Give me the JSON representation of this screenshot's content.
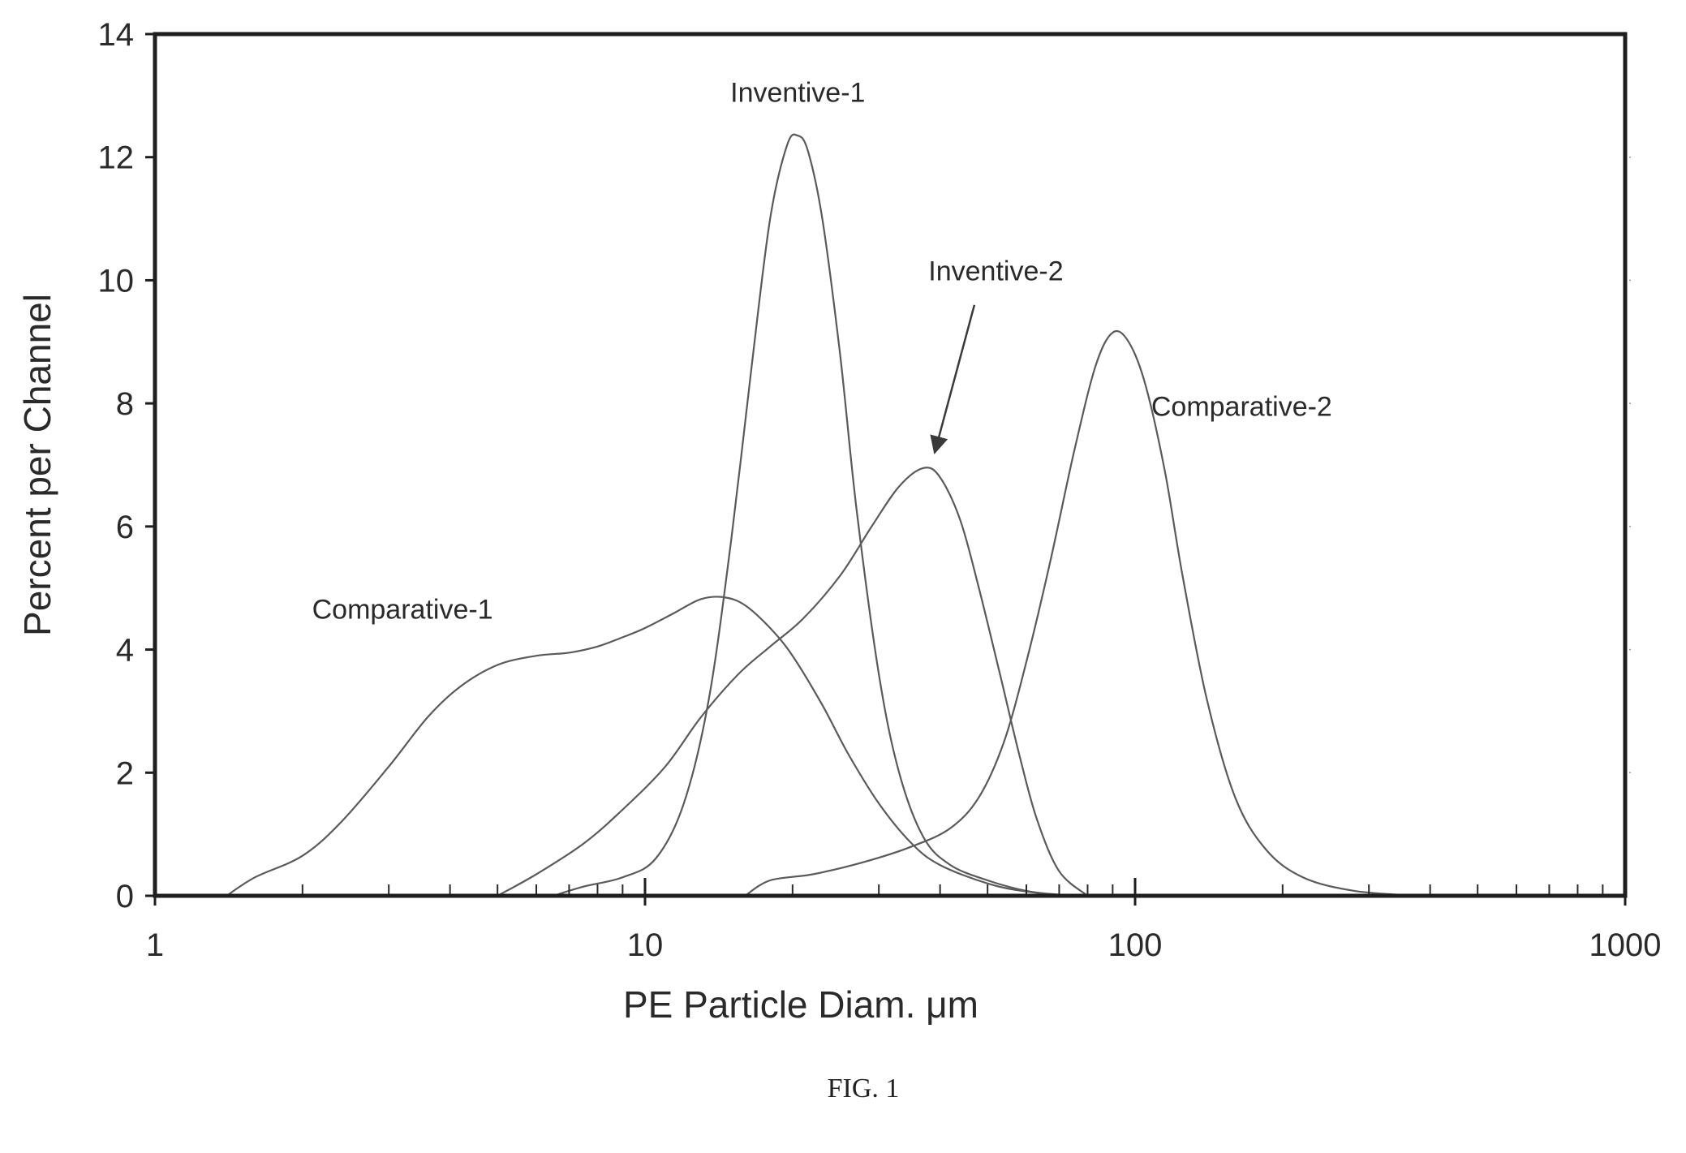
{
  "figure": {
    "caption": "FIG. 1"
  },
  "chart_data": {
    "type": "line",
    "title": "",
    "xlabel": "PE Particle Diam. μm",
    "ylabel": "Percent per Channel",
    "xscale": "log",
    "xlim": [
      1,
      1000
    ],
    "ylim": [
      0,
      14
    ],
    "xticks": [
      1,
      10,
      100,
      1000
    ],
    "xtick_labels": [
      "1",
      "10",
      "100",
      "1000"
    ],
    "yticks": [
      0,
      2,
      4,
      6,
      8,
      10,
      12,
      14
    ],
    "ytick_labels": [
      "0",
      "2",
      "4",
      "6",
      "8",
      "10",
      "12",
      "14"
    ],
    "grid": false,
    "legend": "none",
    "series": [
      {
        "name": "Comparative-1",
        "label_at": {
          "x": 3.2,
          "y": 4.5
        },
        "points": [
          [
            1.4,
            0
          ],
          [
            1.6,
            0.3
          ],
          [
            2.0,
            0.65
          ],
          [
            2.4,
            1.2
          ],
          [
            3.0,
            2.1
          ],
          [
            3.6,
            2.9
          ],
          [
            4.2,
            3.4
          ],
          [
            5.0,
            3.75
          ],
          [
            6.0,
            3.9
          ],
          [
            7.0,
            3.95
          ],
          [
            8.0,
            4.05
          ],
          [
            9.0,
            4.2
          ],
          [
            10.0,
            4.35
          ],
          [
            11.5,
            4.6
          ],
          [
            13.0,
            4.82
          ],
          [
            14.5,
            4.85
          ],
          [
            16.0,
            4.72
          ],
          [
            18.0,
            4.35
          ],
          [
            20.0,
            3.9
          ],
          [
            23.0,
            3.1
          ],
          [
            26.0,
            2.3
          ],
          [
            30.0,
            1.5
          ],
          [
            35.0,
            0.85
          ],
          [
            40.0,
            0.5
          ],
          [
            50.0,
            0.2
          ],
          [
            60.0,
            0.07
          ],
          [
            75.0,
            0
          ]
        ]
      },
      {
        "name": "Inventive-1",
        "label_at": {
          "x": 20.5,
          "y": 12.9
        },
        "points": [
          [
            6.5,
            0
          ],
          [
            7.5,
            0.15
          ],
          [
            9.0,
            0.3
          ],
          [
            10.5,
            0.6
          ],
          [
            12.0,
            1.5
          ],
          [
            13.5,
            3.2
          ],
          [
            15.0,
            5.8
          ],
          [
            16.5,
            8.6
          ],
          [
            18.0,
            11.0
          ],
          [
            19.5,
            12.2
          ],
          [
            20.5,
            12.35
          ],
          [
            21.5,
            12.1
          ],
          [
            23.0,
            11.0
          ],
          [
            25.0,
            8.8
          ],
          [
            27.0,
            6.3
          ],
          [
            30.0,
            3.6
          ],
          [
            33.0,
            2.0
          ],
          [
            37.0,
            0.95
          ],
          [
            42.0,
            0.5
          ],
          [
            50.0,
            0.25
          ],
          [
            60.0,
            0.08
          ],
          [
            72.0,
            0
          ]
        ]
      },
      {
        "name": "Inventive-2",
        "label_at": {
          "x": 52,
          "y": 10.0
        },
        "points": [
          [
            5.0,
            0
          ],
          [
            6.0,
            0.35
          ],
          [
            7.5,
            0.85
          ],
          [
            9.0,
            1.4
          ],
          [
            11.0,
            2.1
          ],
          [
            13.0,
            2.9
          ],
          [
            15.5,
            3.6
          ],
          [
            18.0,
            4.05
          ],
          [
            21.0,
            4.5
          ],
          [
            25.0,
            5.2
          ],
          [
            29.0,
            6.0
          ],
          [
            33.0,
            6.65
          ],
          [
            37.0,
            6.95
          ],
          [
            40.0,
            6.8
          ],
          [
            44.0,
            6.1
          ],
          [
            48.0,
            5.0
          ],
          [
            53.0,
            3.6
          ],
          [
            58.0,
            2.3
          ],
          [
            63.0,
            1.25
          ],
          [
            70.0,
            0.4
          ],
          [
            80.0,
            0
          ]
        ]
      },
      {
        "name": "Comparative-2",
        "label_at": {
          "x": 165,
          "y": 7.8
        },
        "points": [
          [
            16.0,
            0
          ],
          [
            18.0,
            0.25
          ],
          [
            22.0,
            0.35
          ],
          [
            28.0,
            0.55
          ],
          [
            35.0,
            0.8
          ],
          [
            42.0,
            1.1
          ],
          [
            48.0,
            1.6
          ],
          [
            54.0,
            2.5
          ],
          [
            60.0,
            3.8
          ],
          [
            67.0,
            5.4
          ],
          [
            75.0,
            7.2
          ],
          [
            83.0,
            8.6
          ],
          [
            90.0,
            9.15
          ],
          [
            97.0,
            9.0
          ],
          [
            105.0,
            8.3
          ],
          [
            115.0,
            6.9
          ],
          [
            125.0,
            5.2
          ],
          [
            140.0,
            3.2
          ],
          [
            160.0,
            1.6
          ],
          [
            185.0,
            0.75
          ],
          [
            220.0,
            0.3
          ],
          [
            280.0,
            0.08
          ],
          [
            380.0,
            0
          ]
        ]
      }
    ],
    "annotations": [
      {
        "type": "arrow",
        "target_series": "Inventive-2",
        "from": {
          "x": 47,
          "y": 9.6
        },
        "to": {
          "x": 39,
          "y": 7.2
        }
      }
    ]
  }
}
